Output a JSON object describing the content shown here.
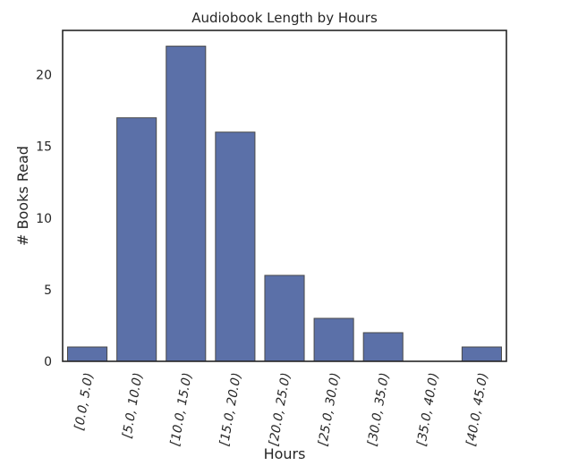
{
  "chart_data": {
    "type": "bar",
    "title": "Audiobook Length by Hours",
    "xlabel": "Hours",
    "ylabel": "# Books Read",
    "categories": [
      "[0.0, 5.0)",
      "[5.0, 10.0)",
      "[10.0, 15.0)",
      "[15.0, 20.0)",
      "[20.0, 25.0)",
      "[25.0, 30.0)",
      "[30.0, 35.0)",
      "[35.0, 40.0)",
      "[40.0, 45.0)"
    ],
    "values": [
      1,
      17,
      22,
      16,
      6,
      3,
      2,
      0,
      1
    ],
    "ylim": [
      0,
      23.1
    ],
    "yticks": [
      0,
      5,
      10,
      15,
      20
    ],
    "bar_color": "#5b70a8",
    "bar_edge_color": "#4a4a4a",
    "grid": false,
    "legend": "none"
  }
}
